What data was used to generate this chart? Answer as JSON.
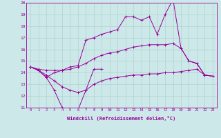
{
  "xlabel": "Windchill (Refroidissement éolien,°C)",
  "x": [
    0,
    1,
    2,
    3,
    4,
    5,
    6,
    7,
    8,
    9,
    10,
    11,
    12,
    13,
    14,
    15,
    16,
    17,
    18,
    19,
    20,
    21,
    22,
    23
  ],
  "line_spike_x": [
    0,
    1,
    2,
    3,
    4,
    5,
    6,
    7,
    8,
    9,
    10,
    11,
    12,
    13,
    14,
    15,
    16,
    17,
    18,
    19,
    20,
    21,
    22,
    23
  ],
  "line_spike": [
    14.5,
    14.2,
    13.6,
    14.0,
    14.2,
    14.5,
    14.6,
    16.8,
    17.0,
    17.3,
    17.5,
    17.7,
    18.8,
    18.8,
    18.5,
    18.8,
    17.3,
    19.0,
    20.3,
    16.1,
    15.0,
    14.8,
    13.8,
    13.7
  ],
  "line_upper": [
    14.5,
    14.3,
    14.2,
    14.2,
    14.2,
    14.3,
    14.5,
    14.8,
    15.2,
    15.5,
    15.7,
    15.8,
    16.0,
    16.2,
    16.3,
    16.4,
    16.4,
    16.4,
    16.5,
    16.1,
    15.0,
    14.8,
    13.8,
    13.7
  ],
  "line_lower": [
    14.5,
    14.2,
    13.8,
    13.3,
    12.8,
    12.5,
    12.3,
    12.5,
    13.0,
    13.3,
    13.5,
    13.6,
    13.7,
    13.8,
    13.8,
    13.9,
    13.9,
    14.0,
    14.0,
    14.1,
    14.2,
    14.3,
    13.8,
    13.7
  ],
  "line_dip_x": [
    0,
    1,
    2,
    3,
    4,
    5,
    6,
    7,
    8,
    9
  ],
  "line_dip": [
    14.5,
    14.2,
    13.6,
    12.5,
    11.0,
    10.8,
    10.8,
    12.5,
    14.3,
    14.3
  ],
  "color": "#990099",
  "bg_color": "#cce8e8",
  "grid_color": "#aacccc",
  "ylim": [
    11,
    20
  ],
  "xlim": [
    -0.5,
    23.5
  ],
  "yticks": [
    11,
    12,
    13,
    14,
    15,
    16,
    17,
    18,
    19,
    20
  ],
  "xticks": [
    0,
    1,
    2,
    3,
    4,
    5,
    6,
    7,
    8,
    9,
    10,
    11,
    12,
    13,
    14,
    15,
    16,
    17,
    18,
    19,
    20,
    21,
    22,
    23
  ]
}
